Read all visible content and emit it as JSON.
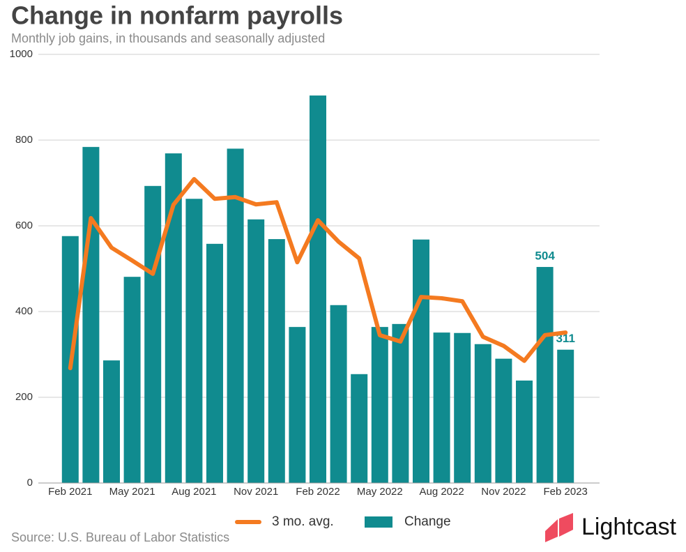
{
  "chart_data": {
    "type": "bar",
    "title": "Change in nonfarm payrolls",
    "subtitle": "Monthly job gains, in thousands and seasonally adjusted",
    "source": "Source: U.S. Bureau of Labor Statistics",
    "brand": "Lightcast",
    "categories": [
      "Feb 2021",
      null,
      null,
      "May 2021",
      null,
      null,
      "Aug 2021",
      null,
      null,
      "Nov 2021",
      null,
      null,
      "Feb 2022",
      null,
      null,
      "May 2022",
      null,
      null,
      "Aug 2022",
      null,
      null,
      "Nov 2022",
      null,
      null,
      "Feb 2023"
    ],
    "series": [
      {
        "name": "3 mo. avg.",
        "type": "line",
        "color": "#f47a20",
        "values": [
          268,
          618,
          549,
          519,
          488,
          649,
          709,
          663,
          667,
          650,
          655,
          515,
          613,
          563,
          524,
          345,
          330,
          434,
          431,
          424,
          341,
          320,
          285,
          345,
          351
        ]
      },
      {
        "name": "Change",
        "type": "bar",
        "color": "#108b8f",
        "values": [
          576,
          784,
          286,
          481,
          693,
          769,
          663,
          558,
          780,
          615,
          569,
          364,
          904,
          415,
          254,
          364,
          371,
          568,
          351,
          350,
          324,
          290,
          239,
          504,
          311
        ],
        "value_labels": [
          null,
          null,
          null,
          null,
          null,
          null,
          null,
          null,
          null,
          null,
          null,
          null,
          null,
          null,
          null,
          null,
          null,
          null,
          null,
          null,
          null,
          null,
          null,
          "504",
          "311"
        ]
      }
    ],
    "ylim": [
      0,
      1000
    ],
    "yticks": [
      0,
      200,
      400,
      600,
      800,
      1000
    ],
    "grid": true,
    "legend": "bottom"
  }
}
